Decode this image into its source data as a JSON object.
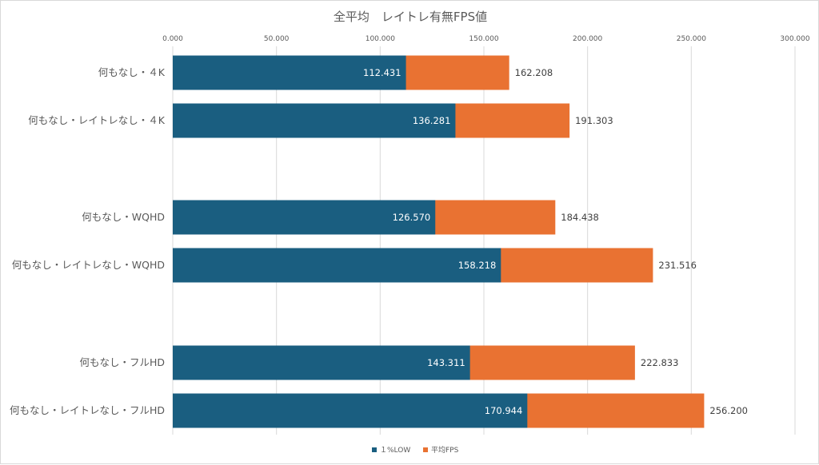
{
  "chart_data": {
    "type": "bar",
    "orientation": "horizontal",
    "stacking": "overlay",
    "title": "全平均　レイトレ有無FPS値",
    "categories": [
      "何もなし・４K",
      "何もなし・レイトレなし・４K",
      "何もなし・WQHD",
      "何もなし・レイトレなし・WQHD",
      "何もなし・フルHD",
      "何もなし・レイトレなし・フルHD"
    ],
    "series": [
      {
        "name": "１%LOW",
        "color": "#1a5e80",
        "values": [
          112.431,
          136.281,
          126.57,
          158.218,
          143.311,
          170.944
        ],
        "labels": [
          "112.431",
          "136.281",
          "126.570",
          "158.218",
          "143.311",
          "170.944"
        ]
      },
      {
        "name": "平均FPS",
        "color": "#e97232",
        "values": [
          162.208,
          191.303,
          184.438,
          231.516,
          222.833,
          256.2
        ],
        "labels": [
          "162.208",
          "191.303",
          "184.438",
          "231.516",
          "222.833",
          "256.200"
        ]
      }
    ],
    "xlim": [
      0,
      300
    ],
    "xticks": [
      0,
      50,
      100,
      150,
      200,
      250,
      300
    ],
    "xtick_labels": [
      "0.000",
      "50.000",
      "100.000",
      "150.000",
      "200.000",
      "250.000",
      "300.000"
    ],
    "xaxis_position": "top",
    "grid": true,
    "legend": "bottom"
  }
}
